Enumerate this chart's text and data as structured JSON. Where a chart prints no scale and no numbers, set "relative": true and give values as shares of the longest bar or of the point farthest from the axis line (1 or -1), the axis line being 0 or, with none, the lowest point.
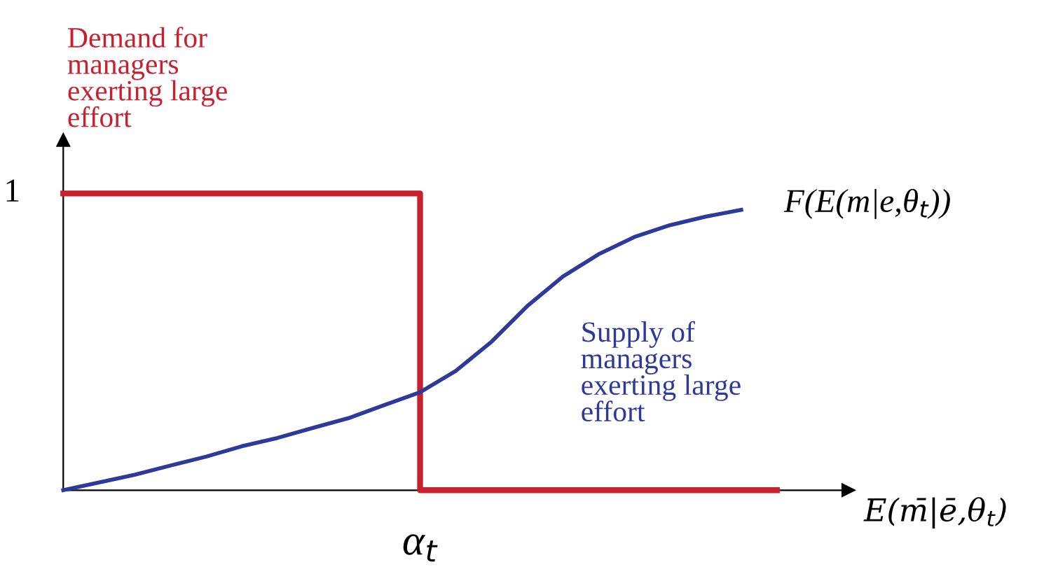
{
  "chart_data": {
    "type": "line",
    "relative": true,
    "categories": [
      null,
      null,
      null,
      null,
      null,
      null,
      null,
      null,
      null,
      null,
      null,
      null,
      null,
      null,
      null,
      null,
      null,
      null,
      null,
      null,
      null
    ],
    "xlabel": "E(m̄|ē,θ$_{t}$)",
    "marker": "none",
    "line_style": "solid",
    "series": [
      {
        "name": "Demand for\nmanagers\nexerting large\neffort",
        "type": "step",
        "color": "#c8202f",
        "values": [
          1,
          1,
          1,
          1,
          1,
          1,
          1,
          1,
          1,
          1,
          0,
          0,
          0,
          0,
          0,
          0,
          0,
          0,
          0,
          0,
          0
        ]
      },
      {
        "name": "Supply of\nmanagers\nexerting large\neffort",
        "color": "#2e3a9a",
        "values": [
          0,
          0.026,
          0.052,
          0.083,
          0.113,
          0.148,
          0.176,
          0.21,
          0.243,
          0.287,
          0.33,
          0.402,
          0.5,
          0.62,
          0.72,
          0.795,
          0.853,
          0.893,
          0.922,
          0.945,
          null
        ]
      }
    ],
    "annotations": [
      "1",
      "α$_{t}$",
      "F(E(m|e,θ$_{t}$))"
    ]
  }
}
